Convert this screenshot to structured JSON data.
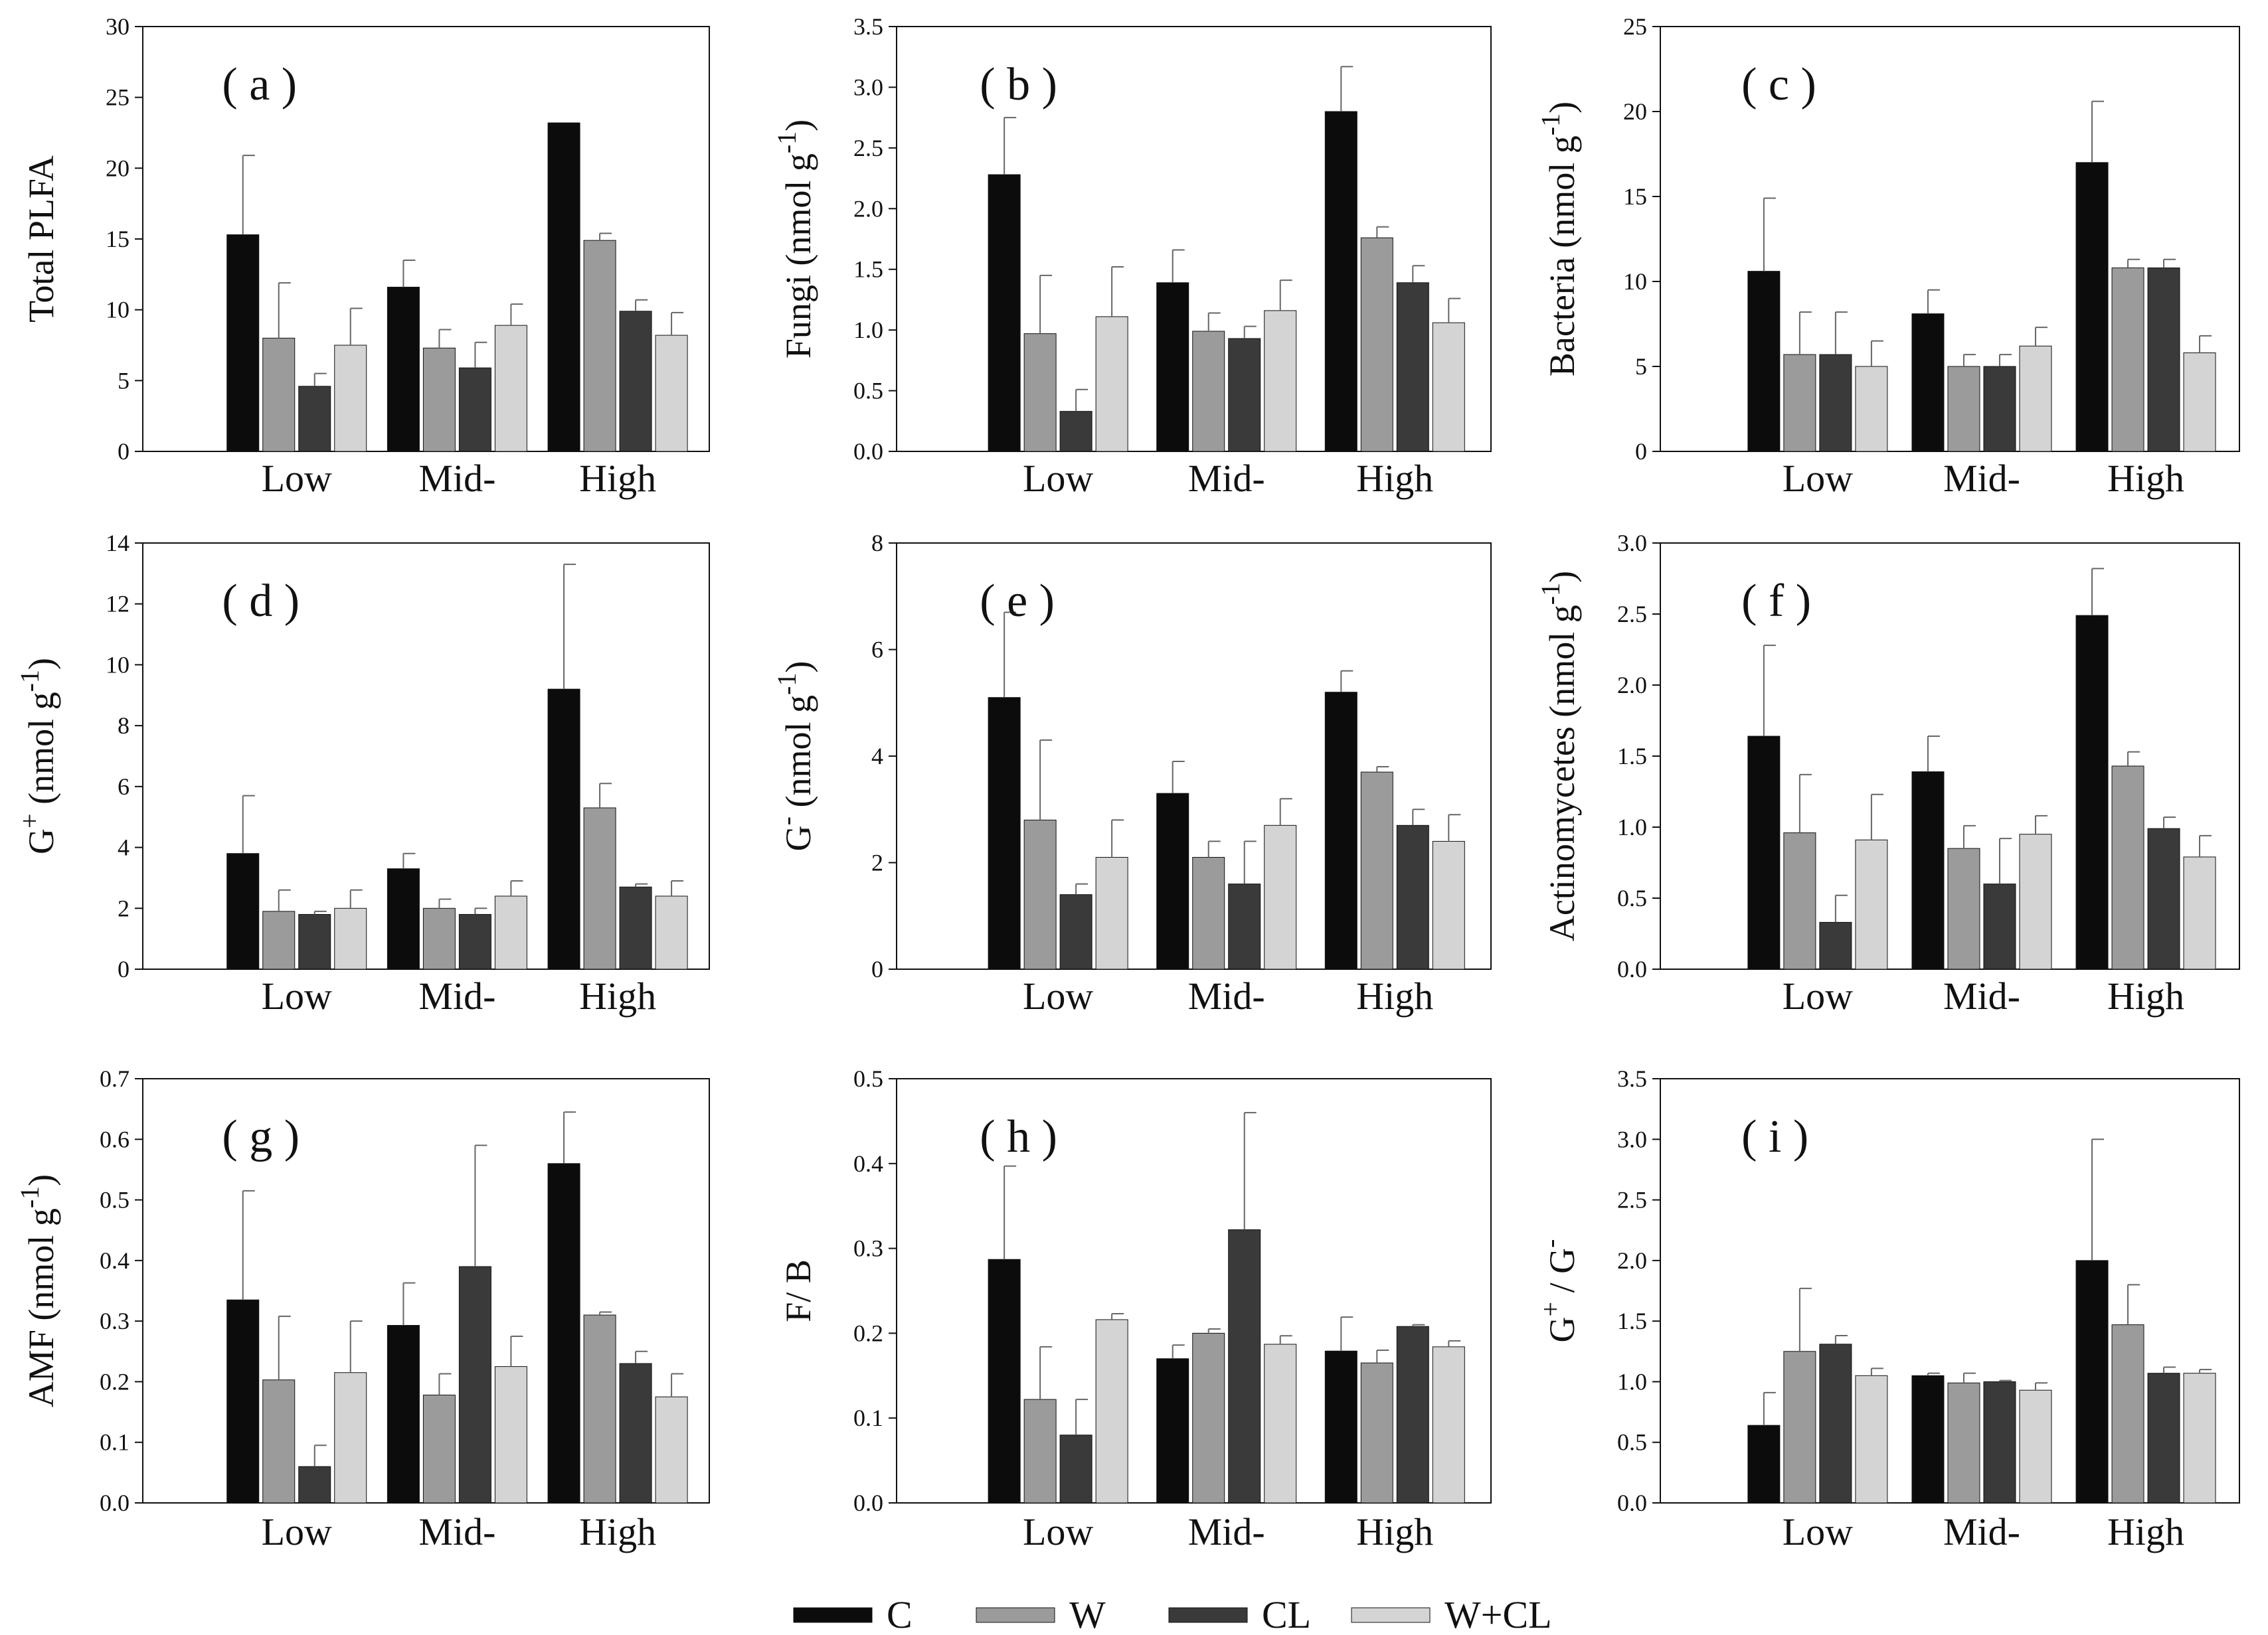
{
  "figure": {
    "colors": {
      "C": "#0c0c0c",
      "W": "#9b9b9b",
      "CL": "#3a3a3a",
      "W+CL": "#d4d4d4"
    },
    "legend": [
      {
        "name": "C",
        "color": "#0c0c0c"
      },
      {
        "name": "W",
        "color": "#9b9b9b"
      },
      {
        "name": "CL",
        "color": "#3a3a3a"
      },
      {
        "name": "W+CL",
        "color": "#d4d4d4"
      }
    ]
  },
  "chart_data": [
    {
      "type": "bar",
      "panel": "( a )",
      "ylabel": "Total PLFA",
      "ylabel_sup": "",
      "ylabel_mid": "",
      "ylabel_end": "",
      "ylim": [
        0,
        30
      ],
      "yticks": [
        "0",
        "5",
        "10",
        "15",
        "20",
        "25",
        "30"
      ],
      "categories": [
        "Low",
        "Mid-",
        "High"
      ],
      "series": [
        {
          "name": "C",
          "values": [
            15.3,
            11.6,
            23.2
          ],
          "errors": [
            5.6,
            1.9,
            0
          ]
        },
        {
          "name": "W",
          "values": [
            8.0,
            7.3,
            14.9
          ],
          "errors": [
            3.9,
            1.3,
            0.5
          ]
        },
        {
          "name": "CL",
          "values": [
            4.6,
            5.9,
            9.9
          ],
          "errors": [
            0.9,
            1.8,
            0.8
          ]
        },
        {
          "name": "W+CL",
          "values": [
            7.5,
            8.9,
            8.2
          ],
          "errors": [
            2.6,
            1.5,
            1.6
          ]
        }
      ]
    },
    {
      "type": "bar",
      "panel": "( b )",
      "ylabel": "Fungi (nmol g",
      "ylabel_sup": "-1",
      "ylabel_mid": "",
      "ylabel_end": ")",
      "ylim": [
        0,
        3.5
      ],
      "yticks": [
        "0.0",
        "0.5",
        "1.0",
        "1.5",
        "2.0",
        "2.5",
        "3.0",
        "3.5"
      ],
      "categories": [
        "Low",
        "Mid-",
        "High"
      ],
      "series": [
        {
          "name": "C",
          "values": [
            2.28,
            1.39,
            2.8
          ],
          "errors": [
            0.47,
            0.27,
            0.37
          ]
        },
        {
          "name": "W",
          "values": [
            0.97,
            0.99,
            1.76
          ],
          "errors": [
            0.48,
            0.15,
            0.09
          ]
        },
        {
          "name": "CL",
          "values": [
            0.33,
            0.93,
            1.39
          ],
          "errors": [
            0.18,
            0.1,
            0.14
          ]
        },
        {
          "name": "W+CL",
          "values": [
            1.11,
            1.16,
            1.06
          ],
          "errors": [
            0.41,
            0.25,
            0.2
          ]
        }
      ]
    },
    {
      "type": "bar",
      "panel": "( c )",
      "ylabel": "Bacteria (nmol g",
      "ylabel_sup": "-1",
      "ylabel_mid": "",
      "ylabel_end": ")",
      "ylim": [
        0,
        25
      ],
      "yticks": [
        "0",
        "5",
        "10",
        "15",
        "20",
        "25"
      ],
      "categories": [
        "Low",
        "Mid-",
        "High"
      ],
      "series": [
        {
          "name": "C",
          "values": [
            10.6,
            8.1,
            17.0
          ],
          "errors": [
            4.3,
            1.4,
            3.6
          ]
        },
        {
          "name": "W",
          "values": [
            5.7,
            5.0,
            10.8
          ],
          "errors": [
            2.5,
            0.7,
            0.5
          ]
        },
        {
          "name": "CL",
          "values": [
            5.7,
            5.0,
            10.8
          ],
          "errors": [
            2.5,
            0.7,
            0.5
          ]
        },
        {
          "name": "W+CL",
          "values": [
            5.0,
            6.2,
            5.8
          ],
          "errors": [
            1.5,
            1.1,
            1.0
          ]
        }
      ]
    },
    {
      "type": "bar",
      "panel": "( d )",
      "ylabel": "G",
      "ylabel_sup": "+",
      "ylabel_mid": " (nmol g",
      "ylabel_end": ")",
      "ylabel_sup2": "-1",
      "ylim": [
        0,
        14
      ],
      "yticks": [
        "0",
        "2",
        "4",
        "6",
        "8",
        "10",
        "12",
        "14"
      ],
      "categories": [
        "Low",
        "Mid-",
        "High"
      ],
      "series": [
        {
          "name": "C",
          "values": [
            3.8,
            3.3,
            9.2
          ],
          "errors": [
            1.9,
            0.5,
            4.1
          ]
        },
        {
          "name": "W",
          "values": [
            1.9,
            2.0,
            5.3
          ],
          "errors": [
            0.7,
            0.3,
            0.8
          ]
        },
        {
          "name": "CL",
          "values": [
            1.8,
            1.8,
            2.7
          ],
          "errors": [
            0.1,
            0.2,
            0.1
          ]
        },
        {
          "name": "W+CL",
          "values": [
            2.0,
            2.4,
            2.4
          ],
          "errors": [
            0.6,
            0.5,
            0.5
          ]
        }
      ]
    },
    {
      "type": "bar",
      "panel": "( e )",
      "ylabel": "G",
      "ylabel_sup": "-",
      "ylabel_mid": " (nmol g",
      "ylabel_end": ")",
      "ylabel_sup2": "-1",
      "ylim": [
        0,
        8
      ],
      "yticks": [
        "0",
        "2",
        "4",
        "6",
        "8"
      ],
      "categories": [
        "Low",
        "Mid-",
        "High"
      ],
      "series": [
        {
          "name": "C",
          "values": [
            5.1,
            3.3,
            5.2
          ],
          "errors": [
            1.6,
            0.6,
            0.4
          ]
        },
        {
          "name": "W",
          "values": [
            2.8,
            2.1,
            3.7
          ],
          "errors": [
            1.5,
            0.3,
            0.1
          ]
        },
        {
          "name": "CL",
          "values": [
            1.4,
            1.6,
            2.7
          ],
          "errors": [
            0.2,
            0.8,
            0.3
          ]
        },
        {
          "name": "W+CL",
          "values": [
            2.1,
            2.7,
            2.4
          ],
          "errors": [
            0.7,
            0.5,
            0.5
          ]
        }
      ]
    },
    {
      "type": "bar",
      "panel": "( f )",
      "ylabel": "Actinomycetes (nmol g",
      "ylabel_sup": "-1",
      "ylabel_mid": "",
      "ylabel_end": ")",
      "ylim": [
        0,
        3.0
      ],
      "yticks": [
        "0.0",
        "0.5",
        "1.0",
        "1.5",
        "2.0",
        "2.5",
        "3.0"
      ],
      "categories": [
        "Low",
        "Mid-",
        "High"
      ],
      "series": [
        {
          "name": "C",
          "values": [
            1.64,
            1.39,
            2.49
          ],
          "errors": [
            0.64,
            0.25,
            0.33
          ]
        },
        {
          "name": "W",
          "values": [
            0.96,
            0.85,
            1.43
          ],
          "errors": [
            0.41,
            0.16,
            0.1
          ]
        },
        {
          "name": "CL",
          "values": [
            0.33,
            0.6,
            0.99
          ],
          "errors": [
            0.19,
            0.32,
            0.08
          ]
        },
        {
          "name": "W+CL",
          "values": [
            0.91,
            0.95,
            0.79
          ],
          "errors": [
            0.32,
            0.13,
            0.15
          ]
        }
      ]
    },
    {
      "type": "bar",
      "panel": "( g )",
      "ylabel": "AMF (nmol g",
      "ylabel_sup": "-1",
      "ylabel_mid": "",
      "ylabel_end": ")",
      "ylim": [
        0,
        0.7
      ],
      "yticks": [
        "0.0",
        "0.1",
        "0.2",
        "0.3",
        "0.4",
        "0.5",
        "0.6",
        "0.7"
      ],
      "categories": [
        "Low",
        "Mid-",
        "High"
      ],
      "series": [
        {
          "name": "C",
          "values": [
            0.335,
            0.293,
            0.56
          ],
          "errors": [
            0.18,
            0.07,
            0.085
          ]
        },
        {
          "name": "W",
          "values": [
            0.203,
            0.178,
            0.31
          ],
          "errors": [
            0.105,
            0.035,
            0.005
          ]
        },
        {
          "name": "CL",
          "values": [
            0.06,
            0.39,
            0.23
          ],
          "errors": [
            0.035,
            0.2,
            0.02
          ]
        },
        {
          "name": "W+CL",
          "values": [
            0.215,
            0.225,
            0.175
          ],
          "errors": [
            0.085,
            0.05,
            0.038
          ]
        }
      ]
    },
    {
      "type": "bar",
      "panel": "( h )",
      "ylabel": "F/ B",
      "ylabel_sup": "",
      "ylabel_mid": "",
      "ylabel_end": "",
      "ylim": [
        0,
        0.5
      ],
      "yticks": [
        "0.0",
        "0.1",
        "0.2",
        "0.3",
        "0.4",
        "0.5"
      ],
      "categories": [
        "Low",
        "Mid-",
        "High"
      ],
      "series": [
        {
          "name": "C",
          "values": [
            0.287,
            0.17,
            0.179
          ],
          "errors": [
            0.11,
            0.016,
            0.04
          ]
        },
        {
          "name": "W",
          "values": [
            0.122,
            0.2,
            0.165
          ],
          "errors": [
            0.062,
            0.005,
            0.015
          ]
        },
        {
          "name": "CL",
          "values": [
            0.08,
            0.322,
            0.208
          ],
          "errors": [
            0.042,
            0.138,
            0.002
          ]
        },
        {
          "name": "W+CL",
          "values": [
            0.216,
            0.187,
            0.184
          ],
          "errors": [
            0.007,
            0.01,
            0.007
          ]
        }
      ]
    },
    {
      "type": "bar",
      "panel": "( i )",
      "ylabel": "G",
      "ylabel_sup": "+",
      "ylabel_mid": " / G",
      "ylabel_end": "",
      "ylabel_sup2": "-",
      "ylim": [
        0,
        3.5
      ],
      "yticks": [
        "0.0",
        "0.5",
        "1.0",
        "1.5",
        "2.0",
        "2.5",
        "3.0",
        "3.5"
      ],
      "categories": [
        "Low",
        "Mid-",
        "High"
      ],
      "series": [
        {
          "name": "C",
          "values": [
            0.64,
            1.05,
            2.0
          ],
          "errors": [
            0.27,
            0.02,
            1.0
          ]
        },
        {
          "name": "W",
          "values": [
            1.25,
            0.99,
            1.47
          ],
          "errors": [
            0.52,
            0.08,
            0.33
          ]
        },
        {
          "name": "CL",
          "values": [
            1.31,
            1.0,
            1.07
          ],
          "errors": [
            0.07,
            0.01,
            0.05
          ]
        },
        {
          "name": "W+CL",
          "values": [
            1.05,
            0.93,
            1.07
          ],
          "errors": [
            0.06,
            0.06,
            0.03
          ]
        }
      ]
    }
  ]
}
